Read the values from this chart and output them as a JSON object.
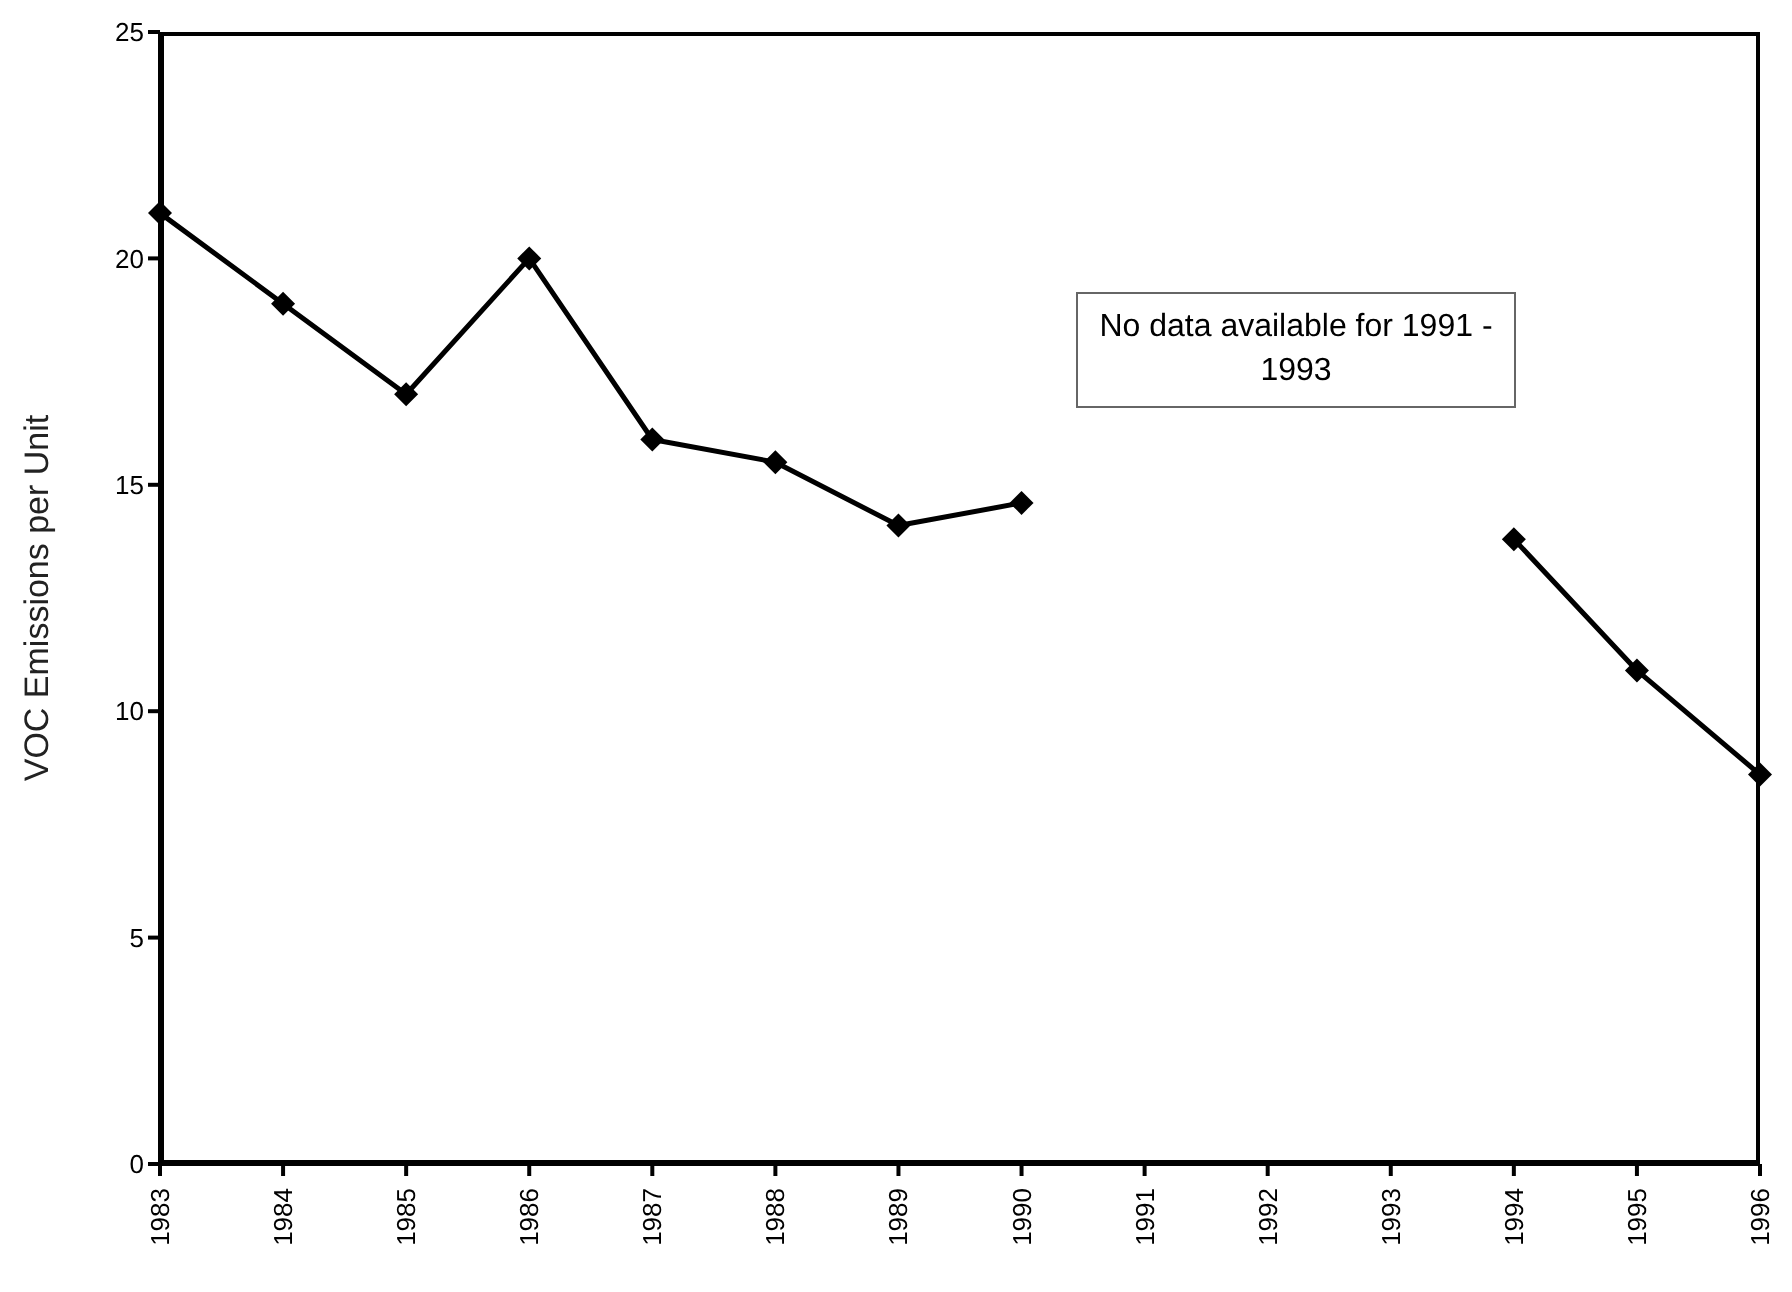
{
  "chart_data": {
    "type": "line",
    "ylabel": "VOC Emissions per Unit",
    "categories": [
      "1983",
      "1984",
      "1985",
      "1986",
      "1987",
      "1988",
      "1989",
      "1990",
      "1991",
      "1992",
      "1993",
      "1994",
      "1995",
      "1996"
    ],
    "series": [
      {
        "color": "#000000",
        "values": [
          21,
          19,
          17,
          20,
          16,
          15.5,
          14.1,
          14.6,
          null,
          null,
          null,
          13.8,
          10.9,
          8.6
        ]
      }
    ],
    "ylim": [
      0,
      25
    ],
    "yticks": [
      0,
      5,
      10,
      15,
      20,
      25
    ],
    "marker": "diamond",
    "line_style": "solid",
    "grid": false,
    "annotations": [
      "No data available for 1991 - 1993"
    ]
  }
}
